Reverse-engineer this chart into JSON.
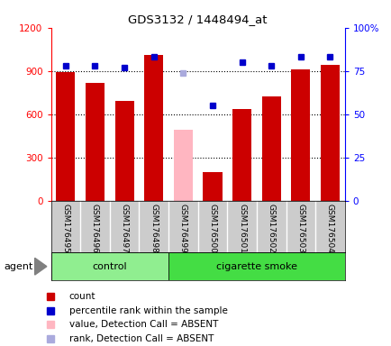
{
  "title": "GDS3132 / 1448494_at",
  "samples": [
    "GSM176495",
    "GSM176496",
    "GSM176497",
    "GSM176498",
    "GSM176499",
    "GSM176500",
    "GSM176501",
    "GSM176502",
    "GSM176503",
    "GSM176504"
  ],
  "counts": [
    893,
    820,
    693,
    1010,
    490,
    197,
    637,
    726,
    910,
    940
  ],
  "percentile_ranks": [
    78,
    78,
    77,
    83,
    74,
    55,
    80,
    78,
    83,
    83
  ],
  "absent_flags": [
    false,
    false,
    false,
    false,
    true,
    false,
    false,
    false,
    false,
    false
  ],
  "absent_rank_flags": [
    false,
    false,
    false,
    false,
    true,
    false,
    false,
    false,
    false,
    false
  ],
  "groups": [
    "control",
    "control",
    "control",
    "control",
    "cigarette smoke",
    "cigarette smoke",
    "cigarette smoke",
    "cigarette smoke",
    "cigarette smoke",
    "cigarette smoke"
  ],
  "bar_color_normal": "#CC0000",
  "bar_color_absent": "#FFB6C1",
  "dot_color_normal": "#0000CC",
  "dot_color_absent": "#AAAADD",
  "ylim_left": [
    0,
    1200
  ],
  "ylim_right": [
    0,
    100
  ],
  "yticks_left": [
    0,
    300,
    600,
    900,
    1200
  ],
  "ytick_labels_left": [
    "0",
    "300",
    "600",
    "900",
    "1200"
  ],
  "yticks_right": [
    0,
    25,
    50,
    75,
    100
  ],
  "ytick_labels_right": [
    "0",
    "25",
    "50",
    "75",
    "100%"
  ],
  "agent_label": "agent",
  "background_color": "#ffffff",
  "plot_bg_color": "#ffffff",
  "tick_area_color": "#cccccc",
  "control_color": "#90EE90",
  "smoke_color": "#44DD44",
  "group_border_color": "#000000"
}
